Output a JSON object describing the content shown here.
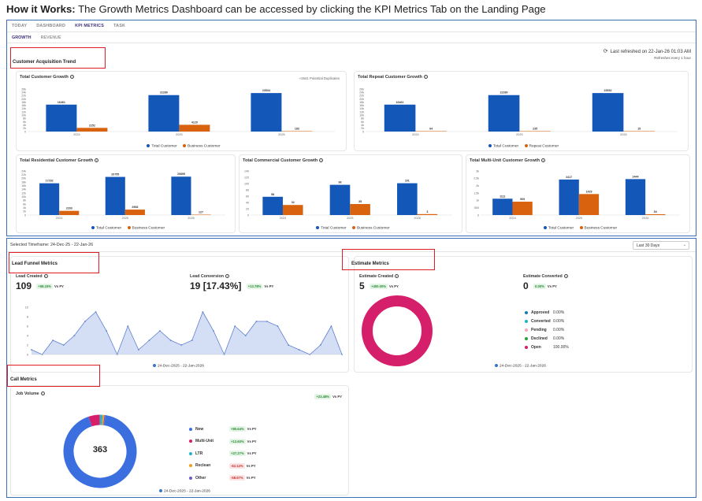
{
  "intro": {
    "bold": "How it Works:",
    "text": "The Growth Metrics Dashboard can be accessed by clicking the KPI Metrics Tab on the Landing Page"
  },
  "nav": {
    "top_tabs": [
      "TODAY",
      "DASHBOARD",
      "KPI METRICS",
      "TASK"
    ],
    "active_top": "KPI METRICS",
    "sub_tabs": [
      "GROWTH",
      "REVENUE"
    ],
    "active_sub": "GROWTH"
  },
  "refresh": {
    "text": "Last refreshed on 22-Jan-26 01:03 AM",
    "sub": "Refreshes every 1 hour",
    "icon": "refresh-icon"
  },
  "sections": {
    "acquisition": "Customer Acquisition Trend",
    "lead_funnel": "Lead Funnel Metrics",
    "estimate": "Estimate Metrics",
    "call": "Call Metrics"
  },
  "colors": {
    "blue": "#1357b8",
    "orange": "#d9620f",
    "area": "#c9d6f3",
    "line": "#5d7fcf",
    "pink": "#d61f6a",
    "red_box": "#e01c24"
  },
  "charts": {
    "total_growth": {
      "title": "Total Customer Growth",
      "note": "+2641 Potential Duplicates",
      "yticks": [
        "26k",
        "24k",
        "22k",
        "20k",
        "18k",
        "16k",
        "14k",
        "12k",
        "10k",
        "8k",
        "6k",
        "4k",
        "2k",
        "0"
      ],
      "categories": [
        "2024",
        "2025",
        "2026"
      ],
      "series": [
        {
          "name": "Total Customer",
          "values": [
            16461,
            22280,
            23534
          ],
          "labels": [
            "16461",
            "22280",
            "23534"
          ]
        },
        {
          "name": "Business Customer",
          "values": [
            2252,
            4129,
            183
          ],
          "labels": [
            "2252",
            "4129",
            "183"
          ]
        }
      ],
      "ymax": 26000
    },
    "repeat_growth": {
      "title": "Total Repeat Customer Growth",
      "yticks": [
        "26k",
        "24k",
        "22k",
        "20k",
        "18k",
        "16k",
        "14k",
        "12k",
        "10k",
        "8k",
        "6k",
        "4k",
        "2k",
        "0"
      ],
      "categories": [
        "2024",
        "2025",
        "2026"
      ],
      "series": [
        {
          "name": "Total Customer",
          "values": [
            16461,
            22280,
            23532
          ],
          "labels": [
            "16461",
            "22280",
            "23532"
          ]
        },
        {
          "name": "Repeat Customer",
          "values": [
            64,
            235,
            15
          ],
          "labels": [
            "64",
            "235",
            "15"
          ]
        }
      ],
      "ymax": 26000
    },
    "residential_growth": {
      "title": "Total Residential Customer Growth",
      "yticks": [
        "24k",
        "22k",
        "20k",
        "18k",
        "16k",
        "14k",
        "12k",
        "10k",
        "8k",
        "6k",
        "4k",
        "2k",
        "0"
      ],
      "categories": [
        "2024",
        "2025",
        "2026"
      ],
      "series": [
        {
          "name": "Total Customer",
          "values": [
            17292,
            20755,
            20895
          ],
          "labels": [
            "17292",
            "20755",
            "20895"
          ]
        },
        {
          "name": "Business Customer",
          "values": [
            2293,
            2968,
            127
          ],
          "labels": [
            "2293",
            "2968",
            "127"
          ]
        }
      ],
      "ymax": 24000
    },
    "commercial_growth": {
      "title": "Total Commercial Customer Growth",
      "yticks": [
        "140",
        "120",
        "100",
        "80",
        "60",
        "40",
        "20",
        "0"
      ],
      "categories": [
        "2024",
        "2025",
        "2026"
      ],
      "series": [
        {
          "name": "Total Customer",
          "values": [
            58,
            96,
            101
          ],
          "labels": [
            "58",
            "96",
            "101"
          ]
        },
        {
          "name": "Business Customer",
          "values": [
            32,
            35,
            3
          ],
          "labels": [
            "32",
            "35",
            "3"
          ]
        }
      ],
      "ymax": 140
    },
    "multiunit_growth": {
      "title": "Total Multi-Unit Customer Growth",
      "yticks": [
        "3k",
        "2.5k",
        "2k",
        "1.5k",
        "1k",
        "500",
        "0"
      ],
      "categories": [
        "2024",
        "2025",
        "2026"
      ],
      "series": [
        {
          "name": "Total Customer",
          "values": [
            1111,
            2417,
            2444
          ],
          "labels": [
            "1111",
            "2417",
            "2444"
          ]
        },
        {
          "name": "Business Customer",
          "values": [
            909,
            1429,
            54
          ],
          "labels": [
            "909",
            "1429",
            "54"
          ]
        }
      ],
      "ymax": 3000
    }
  },
  "timeframe": {
    "label": "Selected Timeframe:",
    "range": "24-Dec-25  -  22-Jan-26",
    "select_value": "Last 30 Days"
  },
  "lead": {
    "created_label": "Lead Created",
    "created_value": "109",
    "created_badge": "+58.15%",
    "conversion_label": "Lead Conversion",
    "conversion_value": "19",
    "conversion_pct": "[17.43%]",
    "conversion_badge": "+13.78%",
    "vspy": "Vs PY",
    "chart_legend": "24-Dec-2025 - 22-Jan-2026",
    "yticks": [
      "10",
      "8",
      "6",
      "4",
      "2",
      "0"
    ],
    "values": [
      1,
      0,
      3,
      2,
      4,
      7,
      9,
      5,
      0,
      6,
      1,
      3,
      5,
      3,
      2,
      3,
      9,
      5,
      0,
      6,
      4,
      7,
      7,
      6,
      2,
      1,
      0,
      2,
      6,
      0
    ],
    "ymax": 10
  },
  "estimate": {
    "created_label": "Estimate Created",
    "created_value": "5",
    "created_badge": "+400.00%",
    "converted_label": "Estimate Converted",
    "converted_value": "0",
    "converted_badge": "0.00%",
    "vspy": "Vs PY",
    "chart_legend": "24-Dec-2025 - 22-Jan-2026",
    "statuses": [
      {
        "name": "Approved",
        "pct": "0.00%",
        "color": "#1f77b4"
      },
      {
        "name": "Converted",
        "pct": "0.00%",
        "color": "#22b3c4"
      },
      {
        "name": "Pending",
        "pct": "0.00%",
        "color": "#f7a5b8"
      },
      {
        "name": "Declined",
        "pct": "0.00%",
        "color": "#2e9e3e"
      },
      {
        "name": "Open",
        "pct": "100.00%",
        "color": "#d61f6a"
      }
    ]
  },
  "call": {
    "job_volume_label": "Job Volume",
    "badge": "+23.48%",
    "vspy": "Vs PY",
    "total": "363",
    "chart_legend": "24-Dec-2025 - 22-Jan-2026",
    "categories": [
      {
        "name": "New",
        "badge": "+80.64%",
        "kind": "g",
        "color": "#3b6fe0",
        "share": 92.5
      },
      {
        "name": "Multi-Unit",
        "badge": "+12.60%",
        "kind": "g",
        "color": "#d61f6a",
        "share": 5
      },
      {
        "name": "LTR",
        "badge": "+27.27%",
        "kind": "g",
        "color": "#2ab0c9",
        "share": 1.2
      },
      {
        "name": "Reclean",
        "badge": "-62.14%",
        "kind": "r",
        "color": "#f0a020",
        "share": 0.8
      },
      {
        "name": "Other",
        "badge": "-58.67%",
        "kind": "r",
        "color": "#6d5cc4",
        "share": 0.5
      }
    ]
  }
}
